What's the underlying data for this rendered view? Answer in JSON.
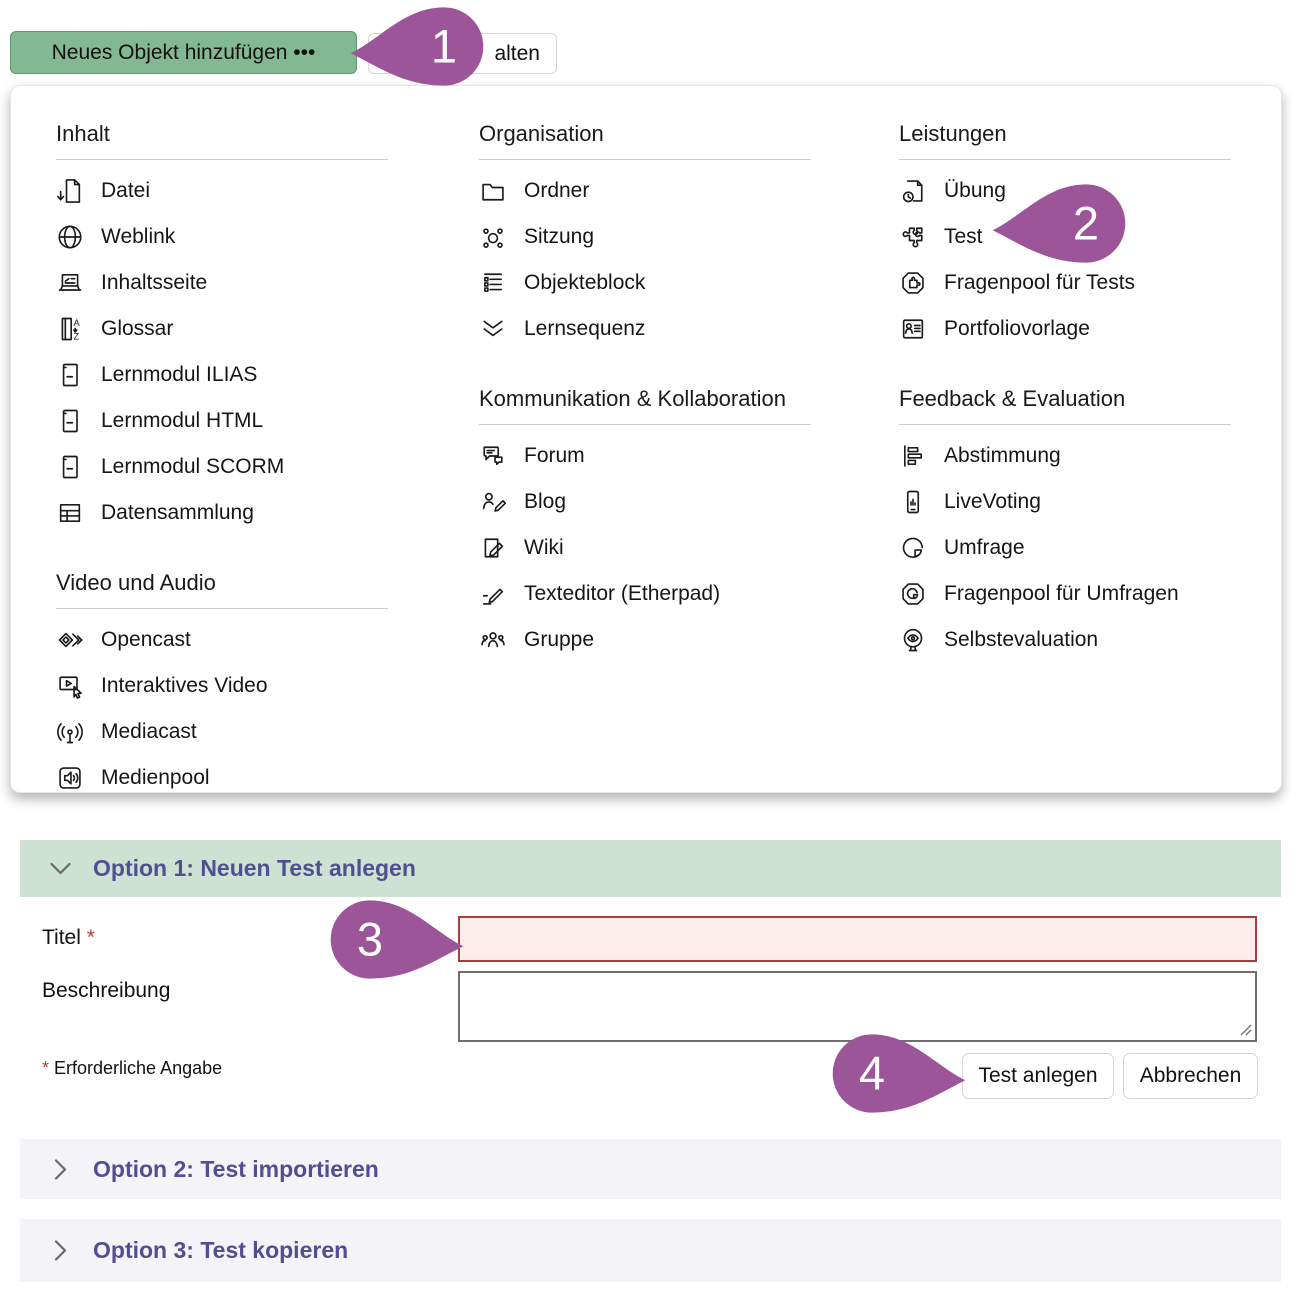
{
  "toolbar": {
    "add_button_label": "Neues Objekt hinzufügen •••",
    "partial_button_label": "alten"
  },
  "callouts": [
    {
      "number": "1"
    },
    {
      "number": "2"
    },
    {
      "number": "3"
    },
    {
      "number": "4"
    }
  ],
  "menu": {
    "columns": [
      {
        "sections": [
          {
            "title": "Inhalt",
            "items": [
              {
                "label": "Datei",
                "icon": "file-download-icon"
              },
              {
                "label": "Weblink",
                "icon": "globe-icon"
              },
              {
                "label": "Inhaltsseite",
                "icon": "content-page-icon"
              },
              {
                "label": "Glossar",
                "icon": "glossary-icon"
              },
              {
                "label": "Lernmodul ILIAS",
                "icon": "learning-module-icon"
              },
              {
                "label": "Lernmodul HTML",
                "icon": "learning-module-icon"
              },
              {
                "label": "Lernmodul SCORM",
                "icon": "learning-module-icon"
              },
              {
                "label": "Datensammlung",
                "icon": "data-table-icon"
              }
            ]
          },
          {
            "title": "Video und Audio",
            "items": [
              {
                "label": "Opencast",
                "icon": "opencast-icon"
              },
              {
                "label": "Interaktives Video",
                "icon": "interactive-video-icon"
              },
              {
                "label": "Mediacast",
                "icon": "broadcast-icon"
              },
              {
                "label": "Medienpool",
                "icon": "media-pool-icon"
              }
            ]
          }
        ]
      },
      {
        "sections": [
          {
            "title": "Organisation",
            "items": [
              {
                "label": "Ordner",
                "icon": "folder-icon"
              },
              {
                "label": "Sitzung",
                "icon": "session-icon"
              },
              {
                "label": "Objekteblock",
                "icon": "object-block-icon"
              },
              {
                "label": "Lernsequenz",
                "icon": "learning-sequence-icon"
              }
            ]
          },
          {
            "title": "Kommunikation & Kollabo­ration",
            "items": [
              {
                "label": "Forum",
                "icon": "forum-icon"
              },
              {
                "label": "Blog",
                "icon": "blog-icon"
              },
              {
                "label": "Wiki",
                "icon": "wiki-icon"
              },
              {
                "label": "Texteditor (Etherpad)",
                "icon": "text-editor-icon"
              },
              {
                "label": "Gruppe",
                "icon": "group-icon"
              }
            ]
          }
        ]
      },
      {
        "sections": [
          {
            "title": "Leistungen",
            "items": [
              {
                "label": "Übung",
                "icon": "exercise-icon"
              },
              {
                "label": "Test",
                "icon": "test-puzzle-icon"
              },
              {
                "label": "Fragenpool für Tests",
                "icon": "question-pool-test-icon"
              },
              {
                "label": "Portfoliovorlage",
                "icon": "portfolio-template-icon"
              }
            ]
          },
          {
            "title": "Feedback & Evaluation",
            "items": [
              {
                "label": "Abstimmung",
                "icon": "poll-icon"
              },
              {
                "label": "LiveVoting",
                "icon": "live-voting-icon"
              },
              {
                "label": "Umfrage",
                "icon": "survey-icon"
              },
              {
                "label": "Fragenpool für Umfragen",
                "icon": "question-pool-survey-icon"
              },
              {
                "label": "Selbstevaluation",
                "icon": "self-evaluation-icon"
              }
            ]
          }
        ]
      }
    ]
  },
  "form": {
    "option1_title": "Option 1: Neuen Test anlegen",
    "title_label": "Titel",
    "required_marker": "*",
    "title_value": "",
    "description_label": "Beschreibung",
    "description_value": "",
    "required_note": "Erforderliche Angabe",
    "submit_label": "Test anlegen",
    "cancel_label": "Abbrechen"
  },
  "sections": {
    "option2_title": "Option 2: Test importieren",
    "option3_title": "Option 3: Test kopieren"
  },
  "colors": {
    "add_button_green": "#82b892",
    "option1_header_green": "#cde2d3",
    "option_collapsed_bg": "#f4f3f7",
    "option_title_purple": "#514e92",
    "callout_purple": "#9c5598",
    "error_border_red": "#a4403d",
    "error_field_bg": "#fbedec"
  }
}
